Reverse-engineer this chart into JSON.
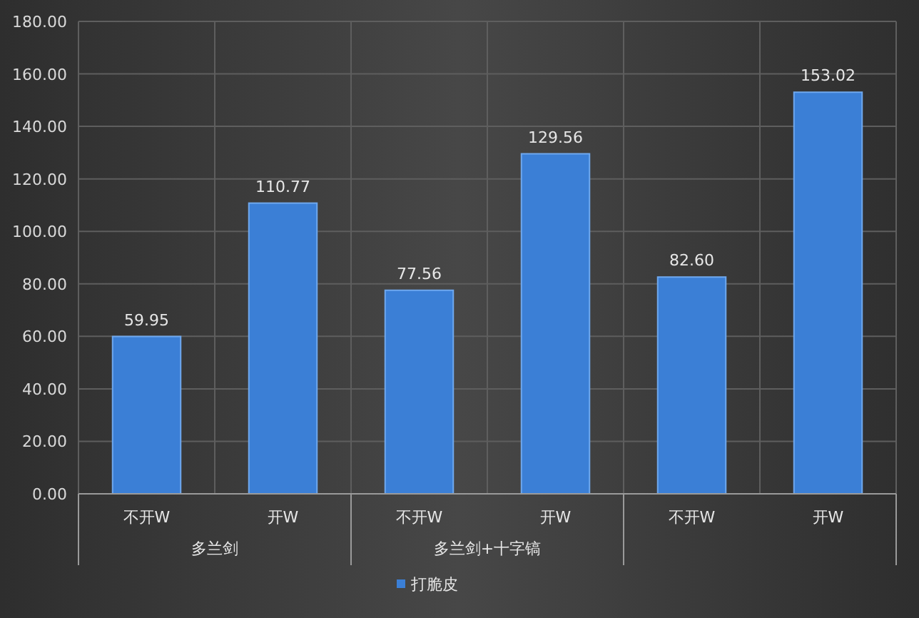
{
  "chart_data": {
    "type": "bar",
    "categories": [
      "不开W",
      "开W",
      "不开W",
      "开W",
      "不开W",
      "开W"
    ],
    "series": [
      {
        "name": "打脆皮",
        "color": "#3b7fd6",
        "values": [
          59.95,
          110.77,
          77.56,
          129.56,
          82.6,
          153.02
        ]
      }
    ],
    "value_labels": [
      "59.95",
      "110.77",
      "77.56",
      "129.56",
      "82.60",
      "153.02"
    ],
    "annotations": [
      "多兰剑",
      "多兰剑+十字镐"
    ],
    "ylim": [
      0,
      180
    ],
    "yticks": [
      {
        "value": 0,
        "label": "0.00"
      },
      {
        "value": 20,
        "label": "20.00"
      },
      {
        "value": 40,
        "label": "40.00"
      },
      {
        "value": 60,
        "label": "60.00"
      },
      {
        "value": 80,
        "label": "80.00"
      },
      {
        "value": 100,
        "label": "100.00"
      },
      {
        "value": 120,
        "label": "120.00"
      },
      {
        "value": 140,
        "label": "140.00"
      },
      {
        "value": 160,
        "label": "160.00"
      },
      {
        "value": 180,
        "label": "180.00"
      }
    ],
    "grid": true,
    "legend": "bottom"
  }
}
